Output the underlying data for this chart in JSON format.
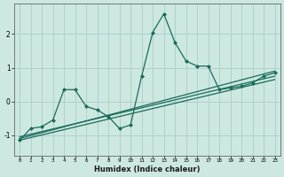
{
  "xlabel": "Humidex (Indice chaleur)",
  "ylabel": "",
  "bg_color": "#cce8e0",
  "grid_color": "#aacccc",
  "line_color": "#1a6b5a",
  "xlim": [
    -0.5,
    23.5
  ],
  "ylim": [
    -1.6,
    2.9
  ],
  "yticks": [
    -1,
    0,
    1,
    2
  ],
  "xticks": [
    0,
    1,
    2,
    3,
    4,
    5,
    6,
    7,
    8,
    9,
    10,
    11,
    12,
    13,
    14,
    15,
    16,
    17,
    18,
    19,
    20,
    21,
    22,
    23
  ],
  "series": [
    {
      "x": [
        0,
        1,
        2,
        3,
        4,
        5,
        6,
        7,
        8,
        9,
        10,
        11,
        12,
        13,
        14,
        15,
        16,
        17,
        18,
        19,
        20,
        21,
        22,
        23
      ],
      "y": [
        -1.15,
        -0.8,
        -0.75,
        -0.55,
        0.35,
        0.35,
        -0.15,
        -0.25,
        -0.45,
        -0.8,
        -0.7,
        0.75,
        2.05,
        2.6,
        1.75,
        1.2,
        1.05,
        1.05,
        0.35,
        0.4,
        0.45,
        0.55,
        0.75,
        0.85
      ],
      "marker": "D",
      "markersize": 2.0,
      "linewidth": 0.9
    },
    {
      "x": [
        0,
        23
      ],
      "y": [
        -1.1,
        0.9
      ],
      "marker": null,
      "linewidth": 0.9
    },
    {
      "x": [
        0,
        23
      ],
      "y": [
        -1.15,
        0.65
      ],
      "marker": null,
      "linewidth": 0.9
    },
    {
      "x": [
        0,
        23
      ],
      "y": [
        -1.05,
        0.75
      ],
      "marker": null,
      "linewidth": 0.9
    }
  ]
}
